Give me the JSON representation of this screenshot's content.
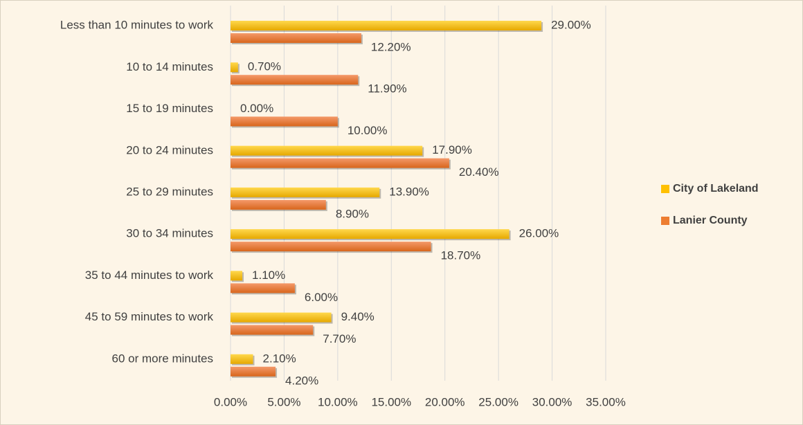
{
  "chart_data": {
    "type": "bar",
    "orientation": "horizontal",
    "categories": [
      "Less than 10 minutes to work",
      "10 to 14 minutes",
      "15 to 19 minutes",
      "20 to 24 minutes",
      "25 to 29 minutes",
      "30 to 34 minutes",
      "35 to 44 minutes to work",
      "45 to 59 minutes to work",
      "60 or more minutes"
    ],
    "series": [
      {
        "name": "City of Lakeland",
        "color": "#ffc000",
        "values": [
          29,
          0.7,
          0,
          17.9,
          13.9,
          26,
          1.1,
          9.4,
          2.1
        ],
        "value_labels": [
          "29.00%",
          "0.70%",
          "0.00%",
          "17.90%",
          "13.90%",
          "26.00%",
          "1.10%",
          "9.40%",
          "2.10%"
        ]
      },
      {
        "name": "Lanier County",
        "color": "#ed7d31",
        "values": [
          12.2,
          11.9,
          10,
          20.4,
          8.9,
          18.7,
          6,
          7.7,
          4.2
        ],
        "value_labels": [
          "12.20%",
          "11.90%",
          "10.00%",
          "20.40%",
          "8.90%",
          "18.70%",
          "6.00%",
          "7.70%",
          "4.20%"
        ]
      }
    ],
    "xlim": [
      0,
      35
    ],
    "xticks": [
      {
        "value": 0,
        "label": "0.00%"
      },
      {
        "value": 5,
        "label": "5.00%"
      },
      {
        "value": 10,
        "label": "10.00%"
      },
      {
        "value": 15,
        "label": "15.00%"
      },
      {
        "value": 20,
        "label": "20.00%"
      },
      {
        "value": 25,
        "label": "25.00%"
      },
      {
        "value": 30,
        "label": "30.00%"
      },
      {
        "value": 35,
        "label": "35.00%"
      }
    ],
    "grid": true,
    "legend": "right"
  }
}
